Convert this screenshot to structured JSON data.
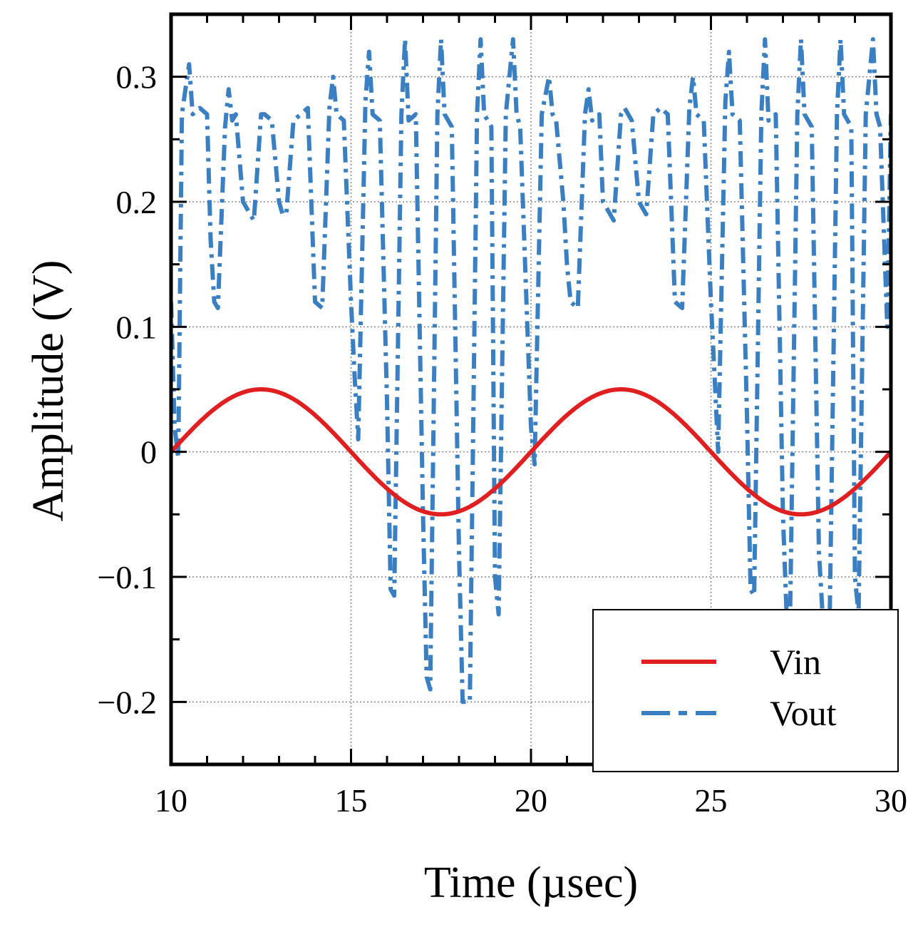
{
  "chart_data": {
    "type": "line",
    "title": "",
    "xlabel": "Time (µsec)",
    "ylabel": "Amplitude (V)",
    "xlim": [
      10,
      30
    ],
    "ylim": [
      -0.25,
      0.35
    ],
    "grid": true,
    "legend_position": "bottom-right",
    "x_ticks": [
      10,
      15,
      20,
      25,
      30
    ],
    "x_tick_labels": [
      "10",
      "15",
      "20",
      "25",
      "30"
    ],
    "y_ticks": [
      0.3,
      0.2,
      0.1,
      0,
      -0.1,
      -0.2
    ],
    "y_tick_labels": [
      "0.3",
      "0.2",
      "0.1",
      "0",
      "−0.1",
      "−0.2"
    ],
    "series": [
      {
        "name": "Vin",
        "color": "#e02020",
        "style": "solid",
        "function": "sine",
        "amplitude": 0.05,
        "period": 10,
        "phase_start": 10,
        "x_range": [
          10,
          30
        ]
      },
      {
        "name": "Vout",
        "color": "#3a7fc1",
        "style": "dash-dot",
        "x": [
          10.0,
          10.1,
          10.2,
          10.3,
          10.4,
          10.5,
          10.6,
          10.8,
          11.0,
          11.1,
          11.2,
          11.3,
          11.5,
          11.6,
          11.7,
          11.8,
          12.0,
          12.2,
          12.3,
          12.5,
          12.6,
          12.8,
          13.0,
          13.1,
          13.2,
          13.4,
          13.6,
          13.8,
          14.0,
          14.2,
          14.4,
          14.5,
          14.6,
          14.8,
          15.0,
          15.1,
          15.2,
          15.4,
          15.5,
          15.6,
          15.8,
          16.0,
          16.1,
          16.2,
          16.4,
          16.5,
          16.6,
          16.8,
          17.0,
          17.1,
          17.2,
          17.4,
          17.5,
          17.6,
          17.8,
          18.0,
          18.1,
          18.3,
          18.5,
          18.6,
          18.7,
          18.9,
          19.0,
          19.1,
          19.3,
          19.5,
          19.6,
          19.7,
          19.9,
          20.0,
          20.1,
          20.3,
          20.5,
          20.6,
          20.7,
          20.9,
          21.0,
          21.1,
          21.3,
          21.5,
          21.6,
          21.7,
          21.9,
          22.0,
          22.2,
          22.3,
          22.5,
          22.6,
          22.8,
          23.0,
          23.2,
          23.4,
          23.6,
          23.8,
          24.0,
          24.2,
          24.4,
          24.5,
          24.6,
          24.8,
          25.0,
          25.1,
          25.2,
          25.4,
          25.5,
          25.6,
          25.8,
          26.0,
          26.1,
          26.2,
          26.4,
          26.5,
          26.6,
          26.8,
          27.0,
          27.1,
          27.2,
          27.4,
          27.5,
          27.6,
          27.8,
          28.0,
          28.1,
          28.3,
          28.5,
          28.6,
          28.7,
          28.9,
          29.0,
          29.1,
          29.3,
          29.5,
          29.6,
          29.7,
          29.9,
          30.0
        ],
        "values": [
          0.12,
          0.02,
          -0.005,
          0.27,
          0.29,
          0.31,
          0.27,
          0.275,
          0.27,
          0.17,
          0.12,
          0.115,
          0.26,
          0.29,
          0.265,
          0.27,
          0.2,
          0.19,
          0.185,
          0.27,
          0.27,
          0.265,
          0.2,
          0.19,
          0.19,
          0.265,
          0.27,
          0.275,
          0.12,
          0.115,
          0.275,
          0.3,
          0.27,
          0.265,
          0.12,
          0.06,
          0.01,
          0.28,
          0.32,
          0.27,
          0.265,
          0.04,
          -0.11,
          -0.115,
          0.27,
          0.33,
          0.265,
          0.27,
          -0.05,
          -0.18,
          -0.19,
          0.27,
          0.33,
          0.27,
          0.26,
          -0.08,
          -0.2,
          -0.2,
          0.27,
          0.33,
          0.27,
          0.26,
          -0.1,
          -0.13,
          0.27,
          0.33,
          0.27,
          0.26,
          0.1,
          0.02,
          -0.01,
          0.27,
          0.3,
          0.27,
          0.265,
          0.2,
          0.15,
          0.12,
          0.115,
          0.27,
          0.29,
          0.265,
          0.27,
          0.2,
          0.19,
          0.185,
          0.27,
          0.275,
          0.265,
          0.2,
          0.19,
          0.27,
          0.275,
          0.27,
          0.12,
          0.115,
          0.275,
          0.3,
          0.27,
          0.265,
          0.12,
          0.06,
          0.0,
          0.28,
          0.32,
          0.27,
          0.265,
          0.03,
          -0.11,
          -0.115,
          0.27,
          0.33,
          0.265,
          0.27,
          -0.05,
          -0.13,
          -0.13,
          0.27,
          0.33,
          0.27,
          0.26,
          -0.08,
          -0.13,
          -0.13,
          0.27,
          0.33,
          0.27,
          0.26,
          -0.1,
          -0.13,
          0.27,
          0.33,
          0.27,
          0.26,
          0.1,
          0.27
        ]
      }
    ],
    "legend": [
      {
        "label": "Vin",
        "color": "#e02020",
        "style": "solid"
      },
      {
        "label": "Vout",
        "color": "#3a7fc1",
        "style": "dash-dot"
      }
    ]
  }
}
